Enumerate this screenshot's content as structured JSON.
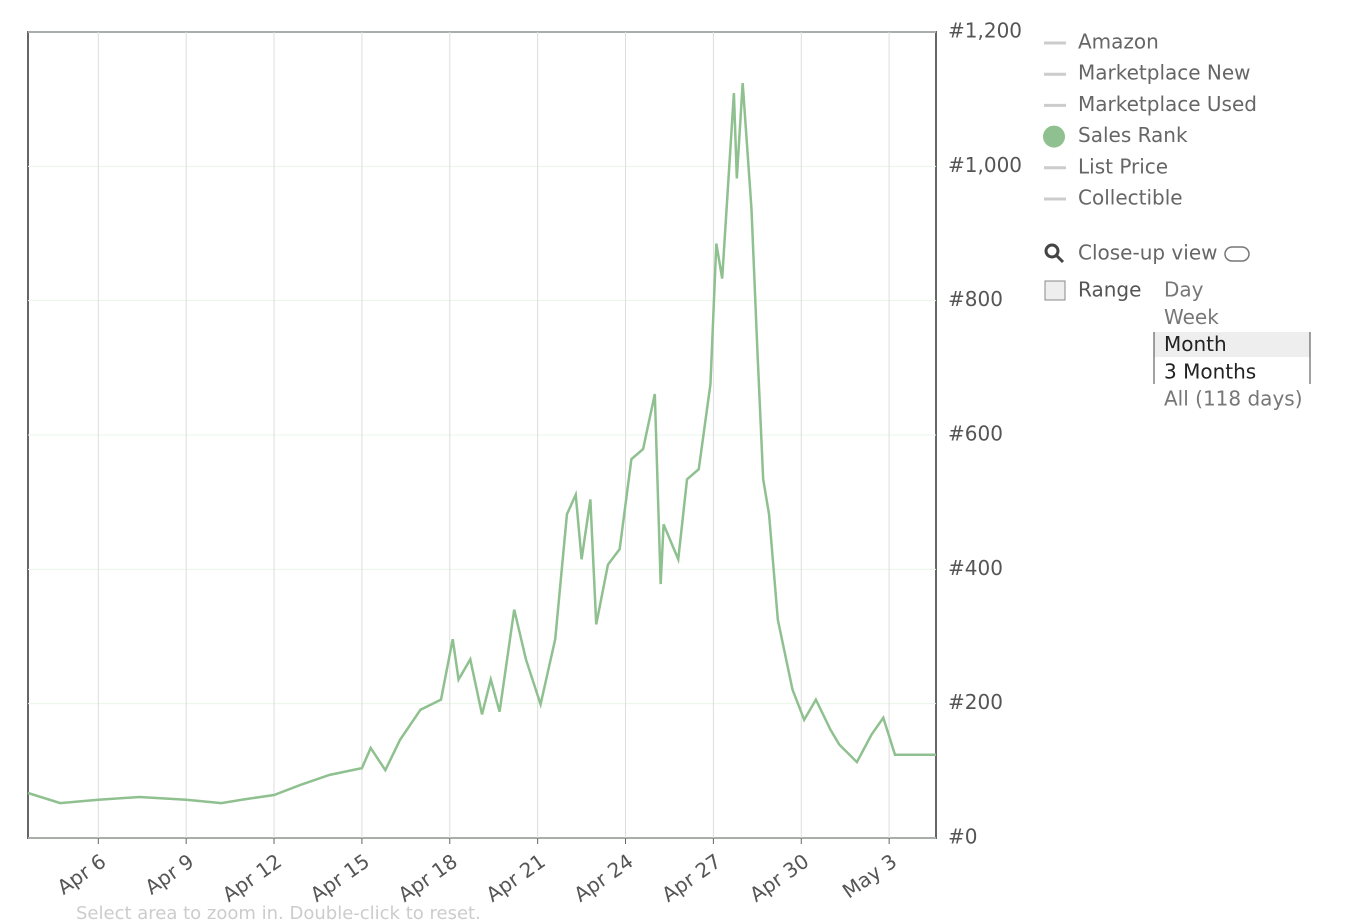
{
  "chart_data": {
    "type": "line",
    "x": [
      3.6,
      4.7,
      6,
      7.4,
      9,
      10.2,
      10.9,
      12,
      12.9,
      13.9,
      15,
      15.3,
      15.8,
      16.3,
      17,
      17.7,
      18.1,
      18.3,
      18.7,
      19.1,
      19.4,
      19.7,
      20.2,
      20.6,
      21.1,
      21.6,
      22,
      22.3,
      22.5,
      22.8,
      23,
      23.4,
      23.8,
      24.2,
      24.6,
      25,
      25.2,
      25.3,
      25.8,
      26.1,
      26.5,
      26.9,
      27.1,
      27.3,
      27.7,
      27.8,
      28,
      28.3,
      28.5,
      28.7,
      28.9,
      29.2,
      29.7,
      30.1,
      30.5,
      31,
      31.3,
      31.9,
      32.4,
      32.8,
      33.2,
      34.6
    ],
    "series": [
      {
        "name": "Sales Rank",
        "color": "#8fc08f",
        "values": [
          67,
          52,
          57,
          61,
          57,
          52,
          57,
          64,
          79,
          94,
          104,
          134,
          101,
          146,
          191,
          206,
          296,
          236,
          266,
          184,
          236,
          188,
          340,
          266,
          199,
          296,
          482,
          511,
          415,
          504,
          318,
          407,
          430,
          564,
          579,
          661,
          378,
          467,
          415,
          534,
          549,
          676,
          885,
          833,
          1109,
          982,
          1124,
          937,
          728,
          534,
          482,
          325,
          221,
          176,
          206,
          161,
          139,
          113,
          154,
          179,
          124,
          124
        ]
      }
    ],
    "xlim": [
      3.6,
      34.6
    ],
    "xticks": [
      {
        "value": 6,
        "label": "Apr 6"
      },
      {
        "value": 9,
        "label": "Apr 9"
      },
      {
        "value": 12,
        "label": "Apr 12"
      },
      {
        "value": 15,
        "label": "Apr 15"
      },
      {
        "value": 18,
        "label": "Apr 18"
      },
      {
        "value": 21,
        "label": "Apr 21"
      },
      {
        "value": 24,
        "label": "Apr 24"
      },
      {
        "value": 27,
        "label": "Apr 27"
      },
      {
        "value": 30,
        "label": "Apr 30"
      },
      {
        "value": 33,
        "label": "May 3"
      }
    ],
    "ylim": [
      0,
      1200
    ],
    "yticks": [
      {
        "value": 0,
        "label": "#0"
      },
      {
        "value": 200,
        "label": "#200"
      },
      {
        "value": 400,
        "label": "#400"
      },
      {
        "value": 600,
        "label": "#600"
      },
      {
        "value": 800,
        "label": "#800"
      },
      {
        "value": 1000,
        "label": "#1,000"
      },
      {
        "value": 1200,
        "label": "#1,200"
      }
    ],
    "grid": true,
    "legend_items": [
      "Amazon",
      "Marketplace New",
      "Marketplace Used",
      "Sales Rank",
      "List Price",
      "Collectible"
    ],
    "hint": "Select area to zoom in. Double-click to reset."
  },
  "controls": {
    "close_up": "Close-up view",
    "range_label": "Range",
    "range_options": [
      "Day",
      "Week",
      "Month",
      "3 Months",
      "All (118 days)"
    ]
  }
}
